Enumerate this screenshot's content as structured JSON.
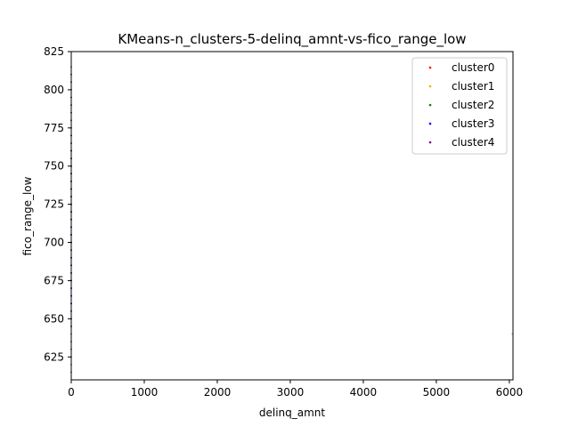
{
  "chart_data": {
    "type": "scatter",
    "title": "KMeans-n_clusters-5-delinq_amnt-vs-fico_range_low",
    "xlabel": "delinq_amnt",
    "ylabel": "fico_range_low",
    "xlim": [
      0,
      6050
    ],
    "ylim": [
      610,
      825
    ],
    "xticks": [
      0,
      1000,
      2000,
      3000,
      4000,
      5000,
      6000
    ],
    "yticks": [
      625,
      650,
      675,
      700,
      725,
      750,
      775,
      800,
      825
    ],
    "grid": false,
    "legend_position": "top-right",
    "series": [
      {
        "name": "cluster0",
        "color": "#ff0000",
        "points": [
          [
            0,
            700
          ],
          [
            0,
            705
          ],
          [
            0,
            710
          ],
          [
            0,
            715
          ],
          [
            0,
            720
          ],
          [
            0,
            725
          ],
          [
            0,
            730
          ],
          [
            0,
            735
          ],
          [
            0,
            740
          ],
          [
            0,
            745
          ],
          [
            0,
            750
          ],
          [
            0,
            755
          ],
          [
            0,
            760
          ],
          [
            0,
            765
          ],
          [
            0,
            770
          ],
          [
            0,
            775
          ],
          [
            0,
            780
          ],
          [
            0,
            785
          ],
          [
            0,
            790
          ],
          [
            0,
            795
          ],
          [
            0,
            800
          ],
          [
            0,
            805
          ],
          [
            0,
            810
          ],
          [
            0,
            815
          ]
        ]
      },
      {
        "name": "cluster1",
        "color": "#ffa500",
        "points": [
          [
            6040,
            640
          ]
        ]
      },
      {
        "name": "cluster2",
        "color": "#008000",
        "points": [
          [
            0,
            615
          ],
          [
            0,
            620
          ],
          [
            0,
            625
          ],
          [
            0,
            630
          ],
          [
            0,
            635
          ],
          [
            0,
            640
          ],
          [
            0,
            645
          ],
          [
            0,
            650
          ],
          [
            0,
            655
          ],
          [
            0,
            660
          ],
          [
            0,
            665
          ],
          [
            0,
            670
          ],
          [
            0,
            675
          ],
          [
            0,
            680
          ],
          [
            0,
            685
          ],
          [
            0,
            690
          ],
          [
            0,
            695
          ],
          [
            0,
            700
          ],
          [
            0,
            705
          ],
          [
            0,
            710
          ],
          [
            0,
            715
          ],
          [
            0,
            720
          ],
          [
            0,
            725
          ],
          [
            0,
            730
          ],
          [
            0,
            735
          ],
          [
            0,
            740
          ],
          [
            0,
            745
          ],
          [
            0,
            750
          ],
          [
            0,
            755
          ],
          [
            0,
            760
          ],
          [
            0,
            765
          ],
          [
            0,
            770
          ],
          [
            0,
            775
          ],
          [
            0,
            780
          ],
          [
            0,
            785
          ],
          [
            0,
            790
          ],
          [
            0,
            795
          ],
          [
            0,
            800
          ],
          [
            0,
            805
          ],
          [
            0,
            810
          ]
        ]
      },
      {
        "name": "cluster3",
        "color": "#0000ff",
        "points": [
          [
            0,
            645
          ],
          [
            0,
            650
          ],
          [
            0,
            655
          ],
          [
            0,
            660
          ],
          [
            0,
            665
          ],
          [
            0,
            670
          ],
          [
            0,
            675
          ],
          [
            0,
            680
          ],
          [
            0,
            685
          ],
          [
            0,
            690
          ],
          [
            0,
            695
          ],
          [
            0,
            700
          ],
          [
            0,
            705
          ],
          [
            0,
            710
          ],
          [
            0,
            715
          ],
          [
            0,
            720
          ],
          [
            0,
            725
          ],
          [
            0,
            730
          ],
          [
            0,
            735
          ],
          [
            0,
            740
          ],
          [
            0,
            745
          ],
          [
            0,
            750
          ],
          [
            0,
            755
          ],
          [
            0,
            760
          ]
        ]
      },
      {
        "name": "cluster4",
        "color": "#800080",
        "points": [
          [
            0,
            660
          ],
          [
            0,
            665
          ],
          [
            0,
            670
          ],
          [
            0,
            675
          ],
          [
            0,
            680
          ],
          [
            0,
            685
          ],
          [
            0,
            690
          ],
          [
            0,
            695
          ],
          [
            0,
            700
          ],
          [
            0,
            705
          ],
          [
            0,
            710
          ],
          [
            0,
            715
          ],
          [
            0,
            720
          ],
          [
            0,
            725
          ],
          [
            0,
            730
          ],
          [
            0,
            735
          ],
          [
            0,
            740
          ],
          [
            0,
            745
          ],
          [
            0,
            750
          ],
          [
            0,
            755
          ],
          [
            0,
            760
          ],
          [
            0,
            765
          ],
          [
            0,
            770
          ]
        ]
      }
    ]
  }
}
